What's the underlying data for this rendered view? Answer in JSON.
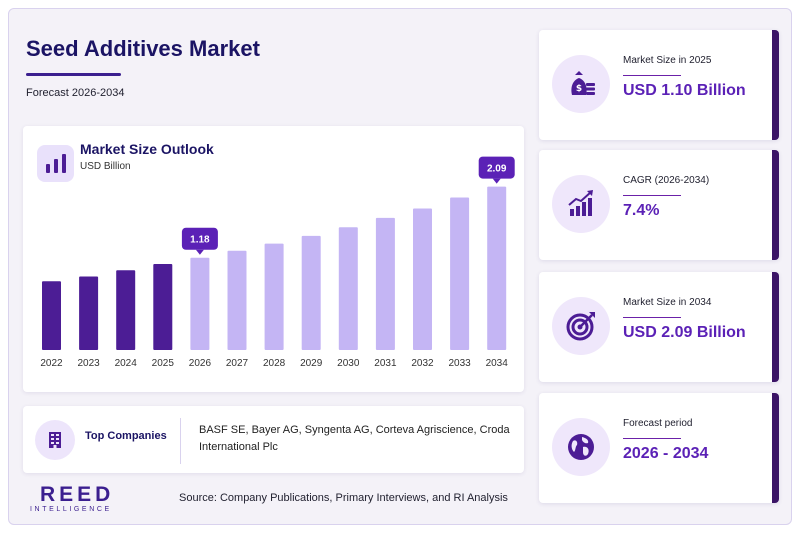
{
  "header": {
    "title": "Seed Additives Market",
    "subtitle": "Forecast 2026-2034"
  },
  "chart_panel": {
    "title": "Market Size Outlook",
    "unit": "USD Billion"
  },
  "chart_data": {
    "type": "bar",
    "categories": [
      "2022",
      "2023",
      "2024",
      "2025",
      "2026",
      "2027",
      "2028",
      "2029",
      "2030",
      "2031",
      "2032",
      "2033",
      "2034"
    ],
    "values": [
      0.88,
      0.94,
      1.02,
      1.1,
      1.18,
      1.27,
      1.36,
      1.46,
      1.57,
      1.69,
      1.81,
      1.95,
      2.09
    ],
    "ylim": [
      0,
      2.2
    ],
    "callouts": [
      {
        "category": "2026",
        "label": "1.18"
      },
      {
        "category": "2034",
        "label": "2.09"
      }
    ],
    "historical_color": "#4c1d95",
    "forecast_color": "#c4b5f4",
    "callout_color": "#5b21b6",
    "grid": false
  },
  "companies": {
    "label": "Top Companies",
    "text": "BASF SE, Bayer AG, Syngenta AG, Corteva Agriscience, Croda International Plc"
  },
  "stats": [
    {
      "label": "Market Size in 2025",
      "value": "USD 1.10 Billion",
      "icon": "money-bag-icon"
    },
    {
      "label": "CAGR (2026-2034)",
      "value": "7.4%",
      "icon": "growth-chart-icon"
    },
    {
      "label": "Market Size in 2034",
      "value": "USD 2.09 Billion",
      "icon": "target-icon"
    },
    {
      "label": "Forecast period",
      "value": "2026 - 2034",
      "icon": "globe-icon"
    }
  ],
  "footer": {
    "logo_main": "REED",
    "logo_sub": "INTELLIGENCE",
    "source": "Source: Company Publications, Primary Interviews, and RI Analysis"
  },
  "colors": {
    "brand": "#3b1f8f",
    "accent": "#5b21b6",
    "icon_bg": "#efe7fb"
  }
}
